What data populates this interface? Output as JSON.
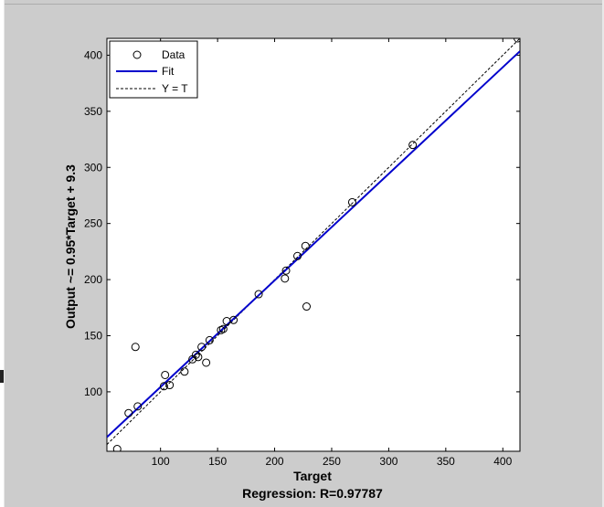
{
  "chart_data": {
    "type": "scatter",
    "xlabel": "Target",
    "ylabel": "Output ~= 0.95*Target + 9.3",
    "title": "Regression: R=0.97787",
    "xlim": [
      53,
      415
    ],
    "ylim": [
      47,
      415
    ],
    "xticks": [
      100,
      150,
      200,
      250,
      300,
      350,
      400
    ],
    "yticks": [
      100,
      150,
      200,
      250,
      300,
      350,
      400
    ],
    "grid": false,
    "legend_position": "top-left",
    "legend": [
      {
        "label": "Data",
        "style": "circle-marker"
      },
      {
        "label": "Fit",
        "style": "solid-blue-line"
      },
      {
        "label": "Y = T",
        "style": "dashed-black-line"
      }
    ],
    "series": [
      {
        "name": "Data",
        "x": [
          62,
          72,
          78,
          80,
          103,
          104,
          108,
          121,
          128,
          131,
          133,
          136,
          140,
          143,
          153,
          155,
          158,
          164,
          186,
          209,
          210,
          220,
          227,
          228,
          268,
          321,
          413
        ],
        "y": [
          49,
          81,
          140,
          87,
          105,
          115,
          106,
          118,
          129,
          133,
          131,
          140,
          126,
          146,
          155,
          156,
          163,
          164,
          187,
          201,
          208,
          221,
          230,
          176,
          269,
          320,
          415
        ]
      }
    ],
    "fit": {
      "slope": 0.95,
      "intercept": 9.3,
      "color": "#0000cc"
    },
    "identity_line": {
      "color": "#000000"
    }
  }
}
